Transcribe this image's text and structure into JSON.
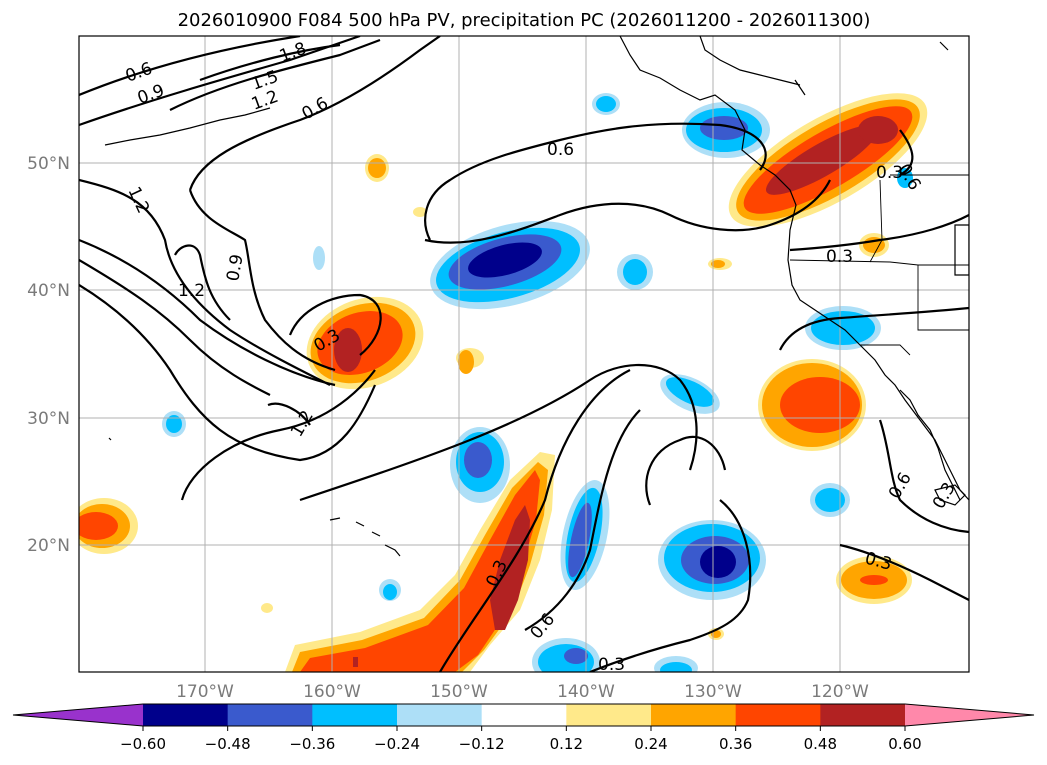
{
  "title": "2026010900 F084 500 hPa PV, precipitation PC (2026011200 - 2026011300)",
  "lon_labels": [
    "170°W",
    "160°W",
    "150°W",
    "140°W",
    "130°W",
    "120°W"
  ],
  "lat_labels": [
    "50°N",
    "40°N",
    "30°N",
    "20°N"
  ],
  "colorbar": {
    "ticks": [
      "−0.60",
      "−0.48",
      "−0.36",
      "−0.24",
      "−0.12",
      "0.12",
      "0.24",
      "0.36",
      "0.48",
      "0.60"
    ],
    "colors": [
      "#9932CC",
      "#00008B",
      "#3A5ACD",
      "#00BFFF",
      "#ADDFF7",
      "#FFFFFF",
      "#FFE98A",
      "#FFA500",
      "#FF4500",
      "#B22222",
      "#FF88AA"
    ]
  },
  "contour_labels": [
    "0.6",
    "0.9",
    "1.5",
    "1.8",
    "1.2",
    "0.6",
    "0.6",
    "1.2",
    "0.9",
    "1.2",
    "0.3",
    "1.2",
    "0.3",
    "0.3",
    "0.6",
    "0.3",
    "0.3",
    "0.6",
    "0.3",
    "0.3",
    "0.6"
  ],
  "chart_data": {
    "type": "map",
    "title": "2026010900 F084 500 hPa PV, precipitation PC (2026011200 - 2026011300)",
    "variable_contours": "500 hPa PV",
    "variable_shading": "precipitation PC",
    "lon_ticks": [
      -170,
      -160,
      -150,
      -140,
      -130,
      -120
    ],
    "lat_ticks": [
      50,
      40,
      30,
      20
    ],
    "colorbar_levels": [
      -0.6,
      -0.48,
      -0.36,
      -0.24,
      -0.12,
      0.12,
      0.24,
      0.36,
      0.48,
      0.6
    ],
    "contour_levels": [
      0.3,
      0.6,
      0.9,
      1.2,
      1.5,
      1.8
    ]
  }
}
